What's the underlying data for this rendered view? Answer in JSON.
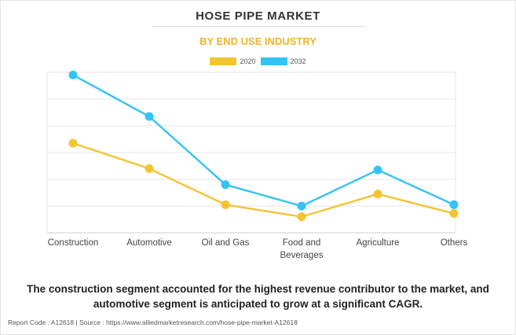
{
  "chart_data": {
    "type": "line",
    "title": "HOSE PIPE MARKET",
    "subtitle": "BY END USE INDUSTRY",
    "categories": [
      [
        "Construction"
      ],
      [
        "Automotive"
      ],
      [
        "Oil and Gas"
      ],
      [
        "Food and",
        "Beverages"
      ],
      [
        "Agriculture"
      ],
      [
        "Others"
      ]
    ],
    "series": [
      {
        "name": "2020",
        "color": "#f4c430",
        "values": [
          3.35,
          2.4,
          1.05,
          0.6,
          1.45,
          0.72
        ]
      },
      {
        "name": "2032",
        "color": "#33c3f5",
        "values": [
          5.9,
          4.35,
          1.8,
          1.0,
          2.35,
          1.05
        ]
      }
    ],
    "ylim": [
      0,
      6
    ],
    "ytick_count": 6,
    "grid": true,
    "legend_position": "top-center",
    "xlabel": "",
    "ylabel": ""
  },
  "caption": "The construction segment accounted for the highest revenue contributor to the market, and automotive segment is anticipated to grow at a significant CAGR.",
  "footer": "Report Code : A12618  |  Source : https://www.alliedmarketresearch.com/hose-pipe-market-A12618"
}
